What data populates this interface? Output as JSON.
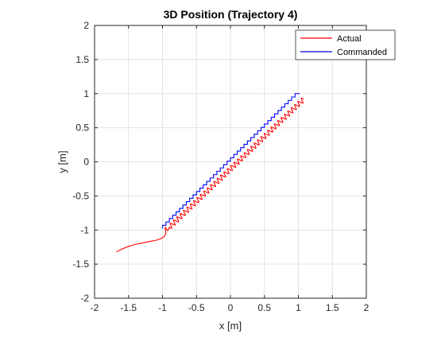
{
  "chart_data": {
    "type": "line",
    "title": "3D Position (Trajectory 4)",
    "xlabel": "x [m]",
    "ylabel": "y [m]",
    "xlim": [
      -2,
      2
    ],
    "ylim": [
      -2,
      2
    ],
    "xticks": [
      -2,
      -1.5,
      -1,
      -0.5,
      0,
      0.5,
      1,
      1.5,
      2
    ],
    "yticks": [
      -2,
      -1.5,
      -1,
      -0.5,
      0,
      0.5,
      1,
      1.5,
      2
    ],
    "xtick_labels": [
      "-2",
      "-1.5",
      "-1",
      "-0.5",
      "0",
      "0.5",
      "1",
      "1.5",
      "2"
    ],
    "ytick_labels": [
      "-2",
      "-1.5",
      "-1",
      "-0.5",
      "0",
      "0.5",
      "1",
      "1.5",
      "2"
    ],
    "grid": true,
    "legend_position": "top-right",
    "series": [
      {
        "name": "Actual",
        "color": "#ff0000",
        "x": [
          -1.68,
          -1.6,
          -1.5,
          -1.4,
          -1.3,
          -1.2,
          -1.1,
          -1.03,
          -0.98,
          -0.96,
          -0.95,
          -0.955,
          -0.96,
          -0.958,
          -0.95,
          -0.94,
          -0.925,
          -0.91,
          -0.9
        ],
        "y": [
          -1.32,
          -1.28,
          -1.24,
          -1.21,
          -1.19,
          -1.17,
          -1.15,
          -1.13,
          -1.1,
          -1.07,
          -1.04,
          -1.01,
          -0.98,
          -0.96,
          -0.97,
          -0.99,
          -1.01,
          -0.99,
          -0.96
        ],
        "zigzag": {
          "x_start": -0.9,
          "y_start": -0.96,
          "x_end": 1.08,
          "y_end": 0.92,
          "steps": 40,
          "amplitude": 0.035
        }
      },
      {
        "name": "Commanded",
        "color": "#0000ff",
        "staircase": {
          "x_start": -1.0,
          "y_start": -0.98,
          "x_end": 1.0,
          "y_end": 1.0,
          "steps": 40
        },
        "tail": {
          "x": [
            1.0,
            1.02
          ],
          "y": [
            1.0,
            1.0
          ]
        }
      }
    ]
  }
}
